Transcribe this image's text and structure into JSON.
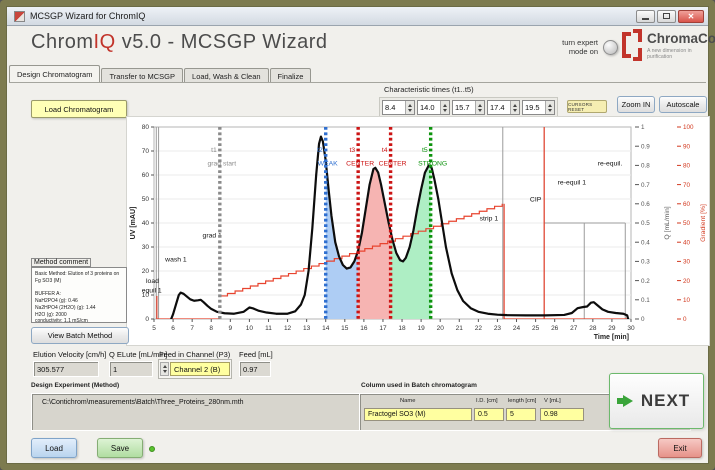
{
  "window": {
    "title": "MCSGP Wizard for ChromIQ",
    "close": "✕"
  },
  "header": {
    "app_chrom": "Chrom",
    "app_iq": "IQ",
    "app_rest": " v5.0 - MCSGP Wizard",
    "expert_line1": "turn expert",
    "expert_line2": "mode on",
    "logo_name": "ChromaCon",
    "logo_tagline": "A new dimension in purification"
  },
  "tabs": [
    {
      "label": "Design Chromatogram"
    },
    {
      "label": "Transfer to MCSGP"
    },
    {
      "label": "Load, Wash & Clean"
    },
    {
      "label": "Finalize"
    }
  ],
  "toolbar": {
    "load_chromatogram": "Load Chromatogram",
    "char_times_label": "Characteristic times (t1..t5)",
    "char_times": [
      "8.4",
      "14.0",
      "15.7",
      "17.4",
      "19.5"
    ],
    "cursors_reset": "CURSORS RESET",
    "zoom_in": "Zoom IN",
    "autoscale": "Autoscale"
  },
  "left_panel": {
    "method_comment_label": "Method comment",
    "method_comment_text": "Basic Method: Elution of 3 proteins on Fg SO3 (M)\n\nBUFFER A:\nNaH2PO4            (g):  0.46\nNa2HPO4 (2H2O)  (g):  1.44\nH2O                  (g):  2000\nconductivity: 1.1 mS/cm\npH: 6.1",
    "view_batch_method": "View Batch Method"
  },
  "fields": {
    "elution_velocity_label": "Elution Velocity [cm/h]",
    "elution_velocity": "305.577",
    "q_elute_label": "Q ELute [mL/min]",
    "q_elute": "1",
    "feed_channel_label": "Feed in Channel (P3)",
    "feed_channel": "Channel 2 (B)",
    "feed_label": "Feed [mL]",
    "feed": "0.97"
  },
  "design_experiment": {
    "label": "Design Experiment (Method)",
    "path": "C:\\Contichrom\\measurements\\Batch\\Three_Proteins_280nm.mth"
  },
  "column_table": {
    "label": "Column used in Batch chromatogram",
    "headers": [
      "Name",
      "I.D. [cm]",
      "length [cm]",
      "V [mL]"
    ],
    "row": [
      "Fractogel SO3 (M)",
      "0.5",
      "5",
      "0.98"
    ]
  },
  "actions": {
    "next": "NEXT",
    "load": "Load",
    "save": "Save",
    "exit": "Exit"
  },
  "chart_data": {
    "type": "line",
    "xlabel": "Time [min]",
    "ylabel": "UV [mAU]",
    "y2label": "Q [mL/min]",
    "y3label": "Gradient [%]",
    "xlim": [
      5,
      30
    ],
    "ylim": [
      0,
      80
    ],
    "y2lim": [
      0,
      1
    ],
    "y3lim": [
      0,
      100
    ],
    "colors": {
      "uv": "#0d0d0d",
      "gradient": "#e8442f",
      "flow": "#9b9b9b",
      "grid": "#ebebeb",
      "axis2": "#555555",
      "axis3": "#d2391f"
    },
    "uv_curve": [
      [
        5.9,
        0
      ],
      [
        6.0,
        2
      ],
      [
        6.15,
        6
      ],
      [
        6.3,
        10
      ],
      [
        6.4,
        11
      ],
      [
        6.55,
        10.5
      ],
      [
        6.7,
        9.5
      ],
      [
        6.9,
        8.2
      ],
      [
        7.1,
        7.6
      ],
      [
        7.3,
        7.8
      ],
      [
        7.45,
        8
      ],
      [
        7.6,
        7
      ],
      [
        7.8,
        5.5
      ],
      [
        8.0,
        4.2
      ],
      [
        8.3,
        3
      ],
      [
        8.7,
        2.4
      ],
      [
        9.2,
        2.2
      ],
      [
        9.7,
        3
      ],
      [
        10.0,
        4.8
      ],
      [
        10.2,
        4.4
      ],
      [
        10.5,
        3.4
      ],
      [
        10.9,
        2.7
      ],
      [
        11.4,
        2.2
      ],
      [
        12.0,
        2.2
      ],
      [
        12.4,
        3.2
      ],
      [
        12.7,
        6
      ],
      [
        12.9,
        10
      ],
      [
        13.1,
        20
      ],
      [
        13.3,
        38
      ],
      [
        13.5,
        60
      ],
      [
        13.65,
        73
      ],
      [
        13.75,
        76
      ],
      [
        13.85,
        74
      ],
      [
        14.0,
        66
      ],
      [
        14.15,
        54
      ],
      [
        14.3,
        43
      ],
      [
        14.5,
        32
      ],
      [
        14.7,
        26
      ],
      [
        14.9,
        22.5
      ],
      [
        15.1,
        21
      ],
      [
        15.3,
        21.5
      ],
      [
        15.5,
        24
      ],
      [
        15.7,
        28.5
      ],
      [
        15.9,
        36
      ],
      [
        16.1,
        46
      ],
      [
        16.3,
        56
      ],
      [
        16.5,
        62.5
      ],
      [
        16.6,
        63
      ],
      [
        16.75,
        61
      ],
      [
        16.9,
        56
      ],
      [
        17.1,
        48
      ],
      [
        17.3,
        40
      ],
      [
        17.5,
        33
      ],
      [
        17.7,
        27.5
      ],
      [
        17.9,
        24.5
      ],
      [
        18.05,
        24
      ],
      [
        18.2,
        25.5
      ],
      [
        18.4,
        30
      ],
      [
        18.6,
        37
      ],
      [
        18.8,
        46
      ],
      [
        19.0,
        54
      ],
      [
        19.2,
        61
      ],
      [
        19.4,
        64
      ],
      [
        19.55,
        63
      ],
      [
        19.7,
        58
      ],
      [
        19.9,
        50
      ],
      [
        20.1,
        40
      ],
      [
        20.3,
        30
      ],
      [
        20.6,
        19
      ],
      [
        20.9,
        12
      ],
      [
        21.2,
        7.5
      ],
      [
        21.6,
        4.5
      ],
      [
        22.0,
        3
      ],
      [
        22.5,
        2.2
      ],
      [
        23.0,
        1.8
      ],
      [
        23.5,
        1.6
      ],
      [
        24.5,
        1.5
      ],
      [
        25.5,
        1.5
      ],
      [
        26.5,
        1.7
      ],
      [
        26.9,
        2.5
      ],
      [
        27.2,
        4.5
      ],
      [
        27.5,
        5
      ],
      [
        27.7,
        5.2
      ],
      [
        27.9,
        6.8
      ],
      [
        28.05,
        7
      ],
      [
        28.2,
        6
      ],
      [
        28.5,
        4
      ],
      [
        28.8,
        3
      ],
      [
        29.2,
        2.5
      ],
      [
        29.6,
        2.2
      ],
      [
        29.8,
        1.5
      ],
      [
        29.85,
        0
      ]
    ],
    "gradient_ramp": {
      "x0": 8.45,
      "g0": 12,
      "x1": 23.35,
      "g1": 60,
      "step": 0.4
    },
    "gradient_segments": [
      [
        [
          5.15,
          0
        ],
        [
          5.15,
          12
        ]
      ],
      [
        [
          5.15,
          0
        ],
        [
          8.45,
          0
        ]
      ],
      [
        [
          23.35,
          60
        ],
        [
          23.35,
          0
        ]
      ],
      [
        [
          23.35,
          0
        ],
        [
          29.8,
          0
        ]
      ],
      [
        [
          25.45,
          0
        ],
        [
          25.45,
          100
        ]
      ]
    ],
    "flow_segments_q": [
      [
        [
          5.12,
          0
        ],
        [
          5.12,
          1
        ]
      ],
      [
        [
          5.24,
          0
        ],
        [
          5.24,
          1
        ]
      ],
      [
        [
          23.28,
          0
        ],
        [
          23.28,
          1
        ]
      ],
      [
        [
          25.45,
          0
        ],
        [
          25.45,
          1
        ]
      ],
      [
        [
          25.45,
          0.5
        ],
        [
          29.7,
          0.5
        ]
      ],
      [
        [
          27.55,
          0
        ],
        [
          27.55,
          0.5
        ]
      ],
      [
        [
          29.7,
          0
        ],
        [
          29.7,
          0.5
        ]
      ]
    ],
    "regions": [
      {
        "x0": 14.0,
        "x1": 15.7,
        "fill": "#aecdf4"
      },
      {
        "x0": 15.7,
        "x1": 17.4,
        "fill": "#f6b4b2"
      },
      {
        "x0": 17.4,
        "x1": 19.5,
        "fill": "#aeeec4"
      }
    ],
    "cursors": [
      {
        "x": 8.45,
        "color": "#8a8a8a",
        "label1": "t1",
        "label2": "grad start"
      },
      {
        "x": 14.0,
        "color": "#2f6fd0",
        "label1": "t2",
        "label2": "WEAK"
      },
      {
        "x": 15.7,
        "color": "#cc1414",
        "label1": "t3",
        "label2": "CENTER"
      },
      {
        "x": 17.4,
        "color": "#cc1414",
        "label1": "t4",
        "label2": "CENTER"
      },
      {
        "x": 19.5,
        "color": "#0d930d",
        "label1": "t5",
        "label2": "STRONG"
      }
    ],
    "section_labels": [
      {
        "x": 4.92,
        "y": 15,
        "text": "load"
      },
      {
        "x": 4.88,
        "y": 11,
        "text": "equil 1"
      },
      {
        "x": 6.15,
        "y": 24,
        "text": "wash 1"
      },
      {
        "x": 8.05,
        "y": 34,
        "text": "grad 1"
      },
      {
        "x": 22.55,
        "y": 41,
        "text": "strip 1"
      },
      {
        "x": 25.0,
        "y": 49,
        "text": "CIP"
      },
      {
        "x": 26.9,
        "y": 56,
        "text": "re-equil 1"
      },
      {
        "x": 28.9,
        "y": 64,
        "text": "re-equil."
      }
    ]
  }
}
